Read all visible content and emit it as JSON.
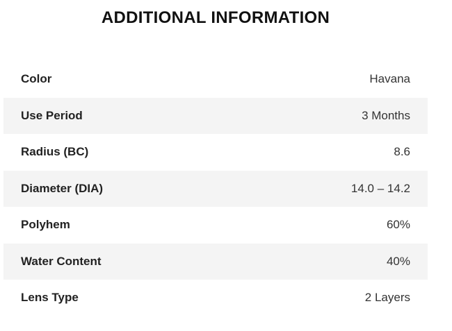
{
  "title": "ADDITIONAL INFORMATION",
  "rows": [
    {
      "label": "Color",
      "value": "Havana"
    },
    {
      "label": "Use Period",
      "value": "3 Months"
    },
    {
      "label": "Radius (BC)",
      "value": "8.6"
    },
    {
      "label": "Diameter (DIA)",
      "value": "14.0 – 14.2"
    },
    {
      "label": "Polyhem",
      "value": "60%"
    },
    {
      "label": "Water Content",
      "value": "40%"
    },
    {
      "label": "Lens Type",
      "value": "2 Layers"
    }
  ]
}
